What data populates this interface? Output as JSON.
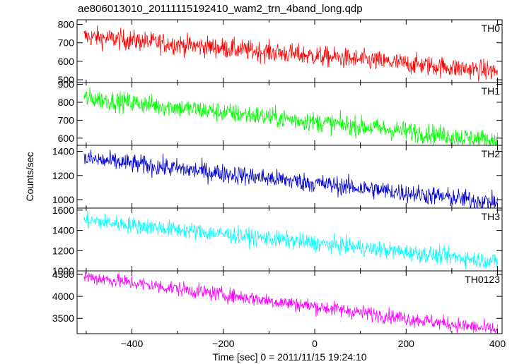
{
  "title": "ae806013010_20111115192410_wam2_trn_4band_long.qdp",
  "chart_data": {
    "type": "line",
    "xlabel": "Time [sec] 0 = 2011/11/15 19:24:10",
    "ylabel": "Counts/sec",
    "xlim": [
      -520,
      410
    ],
    "x_ticks": [
      -400,
      -200,
      0,
      200,
      400
    ],
    "x_range": [
      -505,
      400
    ],
    "grid": false,
    "legend": "none",
    "panels": [
      {
        "name": "TH0",
        "color": "#ff0000",
        "ylim": [
          485,
          825
        ],
        "y_ticks": [
          500,
          600,
          700,
          800
        ],
        "trend_start": 735,
        "trend_end": 545,
        "noise": 28
      },
      {
        "name": "TH1",
        "color": "#00ff00",
        "ylim": [
          560,
          910
        ],
        "y_ticks": [
          600,
          700,
          800,
          900
        ],
        "trend_start": 825,
        "trend_end": 585,
        "noise": 28
      },
      {
        "name": "TH2",
        "color": "#0000cc",
        "ylim": [
          930,
          1450
        ],
        "y_ticks": [
          1000,
          1200,
          1400
        ],
        "trend_start": 1340,
        "trend_end": 975,
        "noise": 40
      },
      {
        "name": "TH3",
        "color": "#00ffff",
        "ylim": [
          1000,
          1620
        ],
        "y_ticks": [
          1000,
          1200,
          1400,
          1600
        ],
        "trend_start": 1500,
        "trend_end": 1095,
        "noise": 42
      },
      {
        "name": "TH0123",
        "color": "#ff00ff",
        "ylim": [
          3150,
          4580
        ],
        "y_ticks": [
          3500,
          4000,
          4500
        ],
        "trend_start": 4450,
        "trend_end": 3230,
        "noise": 85
      }
    ]
  }
}
